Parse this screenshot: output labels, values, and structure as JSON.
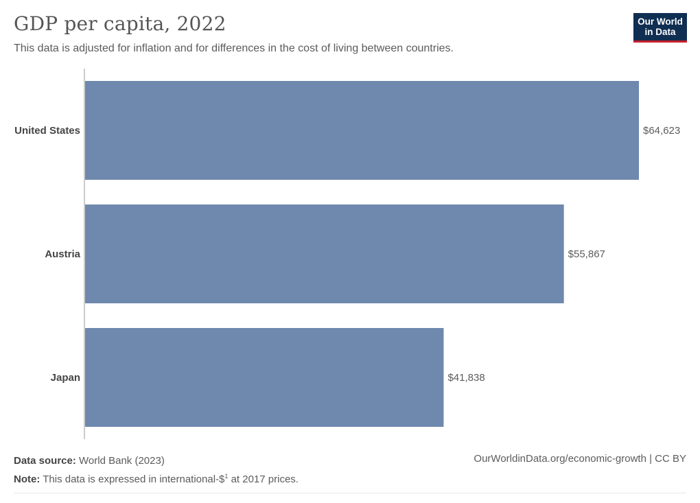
{
  "header": {
    "title": "GDP per capita, 2022",
    "subtitle": "This data is adjusted for inflation and for differences in the cost of living between countries.",
    "logo_line1": "Our World",
    "logo_line2": "in Data"
  },
  "chart_data": {
    "type": "bar",
    "orientation": "horizontal",
    "title": "GDP per capita, 2022",
    "categories": [
      "United States",
      "Austria",
      "Japan"
    ],
    "values": [
      64623,
      55867,
      41838
    ],
    "value_labels": [
      "$64,623",
      "$55,867",
      "$41,838"
    ],
    "xlabel": "",
    "ylabel": "",
    "xlim": [
      0,
      64623
    ],
    "bar_color": "#6f88ad",
    "axis_color": "#999999"
  },
  "footer": {
    "source_label": "Data source:",
    "source_value": "World Bank (2023)",
    "note_label": "Note:",
    "note_text_before": "This data is expressed in international-$",
    "note_sup": "1",
    "note_text_after": " at 2017 prices.",
    "url": "OurWorldinData.org/economic-growth | CC BY"
  }
}
